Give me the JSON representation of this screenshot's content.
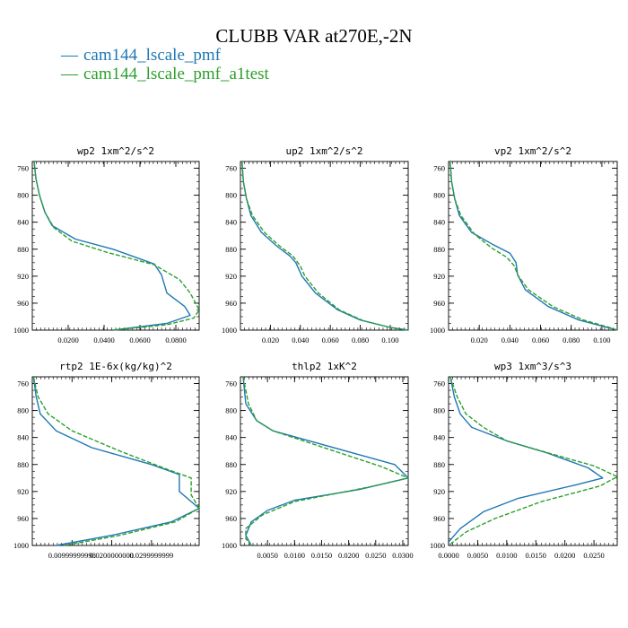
{
  "title": "CLUBB VAR at270E,-2N",
  "colors": {
    "series1": "#1f77b4",
    "series2": "#2ca02c"
  },
  "legend": [
    {
      "label": "cam144_lscale_pmf",
      "color": "#1f77b4",
      "style": "solid"
    },
    {
      "label": "cam144_lscale_pmf_a1test",
      "color": "#2ca02c",
      "style": "dashed"
    }
  ],
  "chart_data": [
    {
      "type": "line",
      "title": "wp2  1xm^2/s^2",
      "xlim": [
        0,
        0.093
      ],
      "ylim": [
        1000,
        750
      ],
      "xticks": [
        0.02,
        0.04,
        0.06,
        0.08
      ],
      "xtick_labels": [
        "0.0200",
        "0.0400",
        "0.0600",
        "0.0800"
      ],
      "yticks": [
        760,
        800,
        840,
        880,
        920,
        960,
        1000
      ],
      "series": [
        {
          "name": "cam144_lscale_pmf",
          "points": [
            [
              0.001,
              750
            ],
            [
              0.002,
              775
            ],
            [
              0.004,
              800
            ],
            [
              0.007,
              825
            ],
            [
              0.011,
              845
            ],
            [
              0.024,
              865
            ],
            [
              0.045,
              880
            ],
            [
              0.068,
              902
            ],
            [
              0.072,
              918
            ],
            [
              0.075,
              945
            ],
            [
              0.085,
              965
            ],
            [
              0.088,
              978
            ],
            [
              0.075,
              990
            ],
            [
              0.045,
              1000
            ]
          ]
        },
        {
          "name": "cam144_lscale_pmf_a1test",
          "points": [
            [
              0.001,
              750
            ],
            [
              0.002,
              775
            ],
            [
              0.004,
              800
            ],
            [
              0.007,
              825
            ],
            [
              0.012,
              848
            ],
            [
              0.022,
              868
            ],
            [
              0.042,
              885
            ],
            [
              0.068,
              903
            ],
            [
              0.082,
              925
            ],
            [
              0.088,
              945
            ],
            [
              0.093,
              970
            ],
            [
              0.09,
              982
            ],
            [
              0.075,
              992
            ],
            [
              0.045,
              1000
            ]
          ]
        }
      ]
    },
    {
      "type": "line",
      "title": "up2  1xm^2/s^2",
      "xlim": [
        0,
        0.112
      ],
      "ylim": [
        1000,
        750
      ],
      "xticks": [
        0.02,
        0.04,
        0.06,
        0.08,
        0.1
      ],
      "xtick_labels": [
        "0.020",
        "0.040",
        "0.060",
        "0.080",
        "0.100"
      ],
      "yticks": [
        760,
        800,
        840,
        880,
        920,
        960,
        1000
      ],
      "series": [
        {
          "name": "cam144_lscale_pmf",
          "points": [
            [
              0.001,
              750
            ],
            [
              0.002,
              780
            ],
            [
              0.004,
              805
            ],
            [
              0.007,
              830
            ],
            [
              0.014,
              855
            ],
            [
              0.024,
              875
            ],
            [
              0.033,
              890
            ],
            [
              0.037,
              900
            ],
            [
              0.041,
              920
            ],
            [
              0.05,
              945
            ],
            [
              0.065,
              970
            ],
            [
              0.08,
              985
            ],
            [
              0.1,
              996
            ],
            [
              0.112,
              1000
            ]
          ]
        },
        {
          "name": "cam144_lscale_pmf_a1test",
          "points": [
            [
              0.001,
              750
            ],
            [
              0.002,
              780
            ],
            [
              0.004,
              805
            ],
            [
              0.008,
              830
            ],
            [
              0.016,
              855
            ],
            [
              0.026,
              875
            ],
            [
              0.035,
              890
            ],
            [
              0.04,
              905
            ],
            [
              0.043,
              920
            ],
            [
              0.052,
              945
            ],
            [
              0.066,
              970
            ],
            [
              0.082,
              986
            ],
            [
              0.1,
              996
            ],
            [
              0.112,
              1000
            ]
          ]
        }
      ]
    },
    {
      "type": "line",
      "title": "vp2  1xm^2/s^2",
      "xlim": [
        0,
        0.11
      ],
      "ylim": [
        1000,
        750
      ],
      "xticks": [
        0.02,
        0.04,
        0.06,
        0.08,
        0.1
      ],
      "xtick_labels": [
        "0.020",
        "0.040",
        "0.060",
        "0.080",
        "0.100"
      ],
      "yticks": [
        760,
        800,
        840,
        880,
        920,
        960,
        1000
      ],
      "series": [
        {
          "name": "cam144_lscale_pmf",
          "points": [
            [
              0.001,
              750
            ],
            [
              0.002,
              780
            ],
            [
              0.004,
              805
            ],
            [
              0.007,
              830
            ],
            [
              0.015,
              855
            ],
            [
              0.028,
              872
            ],
            [
              0.04,
              886
            ],
            [
              0.044,
              900
            ],
            [
              0.045,
              918
            ],
            [
              0.05,
              940
            ],
            [
              0.065,
              965
            ],
            [
              0.085,
              985
            ],
            [
              0.105,
              997
            ],
            [
              0.11,
              1000
            ]
          ]
        },
        {
          "name": "cam144_lscale_pmf_a1test",
          "points": [
            [
              0.001,
              750
            ],
            [
              0.002,
              780
            ],
            [
              0.004,
              805
            ],
            [
              0.008,
              830
            ],
            [
              0.017,
              858
            ],
            [
              0.028,
              878
            ],
            [
              0.038,
              892
            ],
            [
              0.043,
              905
            ],
            [
              0.045,
              918
            ],
            [
              0.052,
              940
            ],
            [
              0.068,
              965
            ],
            [
              0.088,
              985
            ],
            [
              0.105,
              996
            ],
            [
              0.11,
              1000
            ]
          ]
        }
      ]
    },
    {
      "type": "line",
      "title": "rtp2  1E-6x(kg/kg)^2",
      "xlim": [
        0,
        0.042
      ],
      "ylim": [
        1000,
        750
      ],
      "xticks": [
        0.01,
        0.02,
        0.03
      ],
      "xtick_labels": [
        "0.00999999998",
        "0.0200000000",
        "0.0299999999"
      ],
      "yticks": [
        760,
        800,
        840,
        880,
        920,
        960,
        1000
      ],
      "series": [
        {
          "name": "cam144_lscale_pmf",
          "points": [
            [
              0.0003,
              750
            ],
            [
              0.001,
              780
            ],
            [
              0.002,
              805
            ],
            [
              0.006,
              830
            ],
            [
              0.015,
              855
            ],
            [
              0.03,
              880
            ],
            [
              0.037,
              895
            ],
            [
              0.037,
              920
            ],
            [
              0.04,
              935
            ],
            [
              0.042,
              945
            ],
            [
              0.035,
              965
            ],
            [
              0.02,
              985
            ],
            [
              0.006,
              1000
            ]
          ]
        },
        {
          "name": "cam144_lscale_pmf_a1test",
          "points": [
            [
              0.0003,
              750
            ],
            [
              0.0015,
              780
            ],
            [
              0.004,
              805
            ],
            [
              0.01,
              830
            ],
            [
              0.022,
              860
            ],
            [
              0.033,
              885
            ],
            [
              0.04,
              900
            ],
            [
              0.04,
              925
            ],
            [
              0.042,
              945
            ],
            [
              0.036,
              965
            ],
            [
              0.022,
              985
            ],
            [
              0.008,
              1000
            ]
          ]
        }
      ]
    },
    {
      "type": "line",
      "title": "thlp2  1xK^2",
      "xlim": [
        0,
        0.031
      ],
      "ylim": [
        1000,
        750
      ],
      "xticks": [
        0.005,
        0.01,
        0.015,
        0.02,
        0.025,
        0.03
      ],
      "xtick_labels": [
        "0.0050",
        "0.0100",
        "0.0150",
        "0.0200",
        "0.0250",
        "0.0300"
      ],
      "yticks": [
        760,
        800,
        840,
        880,
        920,
        960,
        1000
      ],
      "series": [
        {
          "name": "cam144_lscale_pmf",
          "points": [
            [
              0.0005,
              750
            ],
            [
              0.001,
              790
            ],
            [
              0.003,
              815
            ],
            [
              0.006,
              830
            ],
            [
              0.0285,
              880
            ],
            [
              0.031,
              900
            ],
            [
              0.022,
              917
            ],
            [
              0.01,
              933
            ],
            [
              0.005,
              948
            ],
            [
              0.002,
              965
            ],
            [
              0.001,
              985
            ],
            [
              0.002,
              1000
            ]
          ]
        },
        {
          "name": "cam144_lscale_pmf_a1test",
          "points": [
            [
              0.0005,
              750
            ],
            [
              0.0015,
              790
            ],
            [
              0.003,
              815
            ],
            [
              0.006,
              830
            ],
            [
              0.026,
              883
            ],
            [
              0.031,
              900
            ],
            [
              0.024,
              913
            ],
            [
              0.01,
              935
            ],
            [
              0.004,
              955
            ],
            [
              0.001,
              975
            ],
            [
              0.001,
              990
            ],
            [
              0.002,
              1000
            ]
          ]
        }
      ]
    },
    {
      "type": "line",
      "title": "wp3  1xm^3/s^3",
      "xlim": [
        0,
        0.029
      ],
      "ylim": [
        1000,
        750
      ],
      "xticks": [
        0,
        0.005,
        0.01,
        0.015,
        0.02,
        0.025
      ],
      "xtick_labels": [
        "0.0000",
        "0.0050",
        "0.0100",
        "0.0150",
        "0.0200",
        "0.0250"
      ],
      "yticks": [
        760,
        800,
        840,
        880,
        920,
        960,
        1000
      ],
      "series": [
        {
          "name": "cam144_lscale_pmf",
          "points": [
            [
              0.0003,
              750
            ],
            [
              0.001,
              780
            ],
            [
              0.002,
              805
            ],
            [
              0.004,
              825
            ],
            [
              0.01,
              845
            ],
            [
              0.017,
              863
            ],
            [
              0.024,
              885
            ],
            [
              0.0265,
              900
            ],
            [
              0.022,
              910
            ],
            [
              0.012,
              930
            ],
            [
              0.006,
              950
            ],
            [
              0.002,
              975
            ],
            [
              0,
              995
            ]
          ]
        },
        {
          "name": "cam144_lscale_pmf_a1test",
          "points": [
            [
              0.0003,
              750
            ],
            [
              0.0015,
              780
            ],
            [
              0.003,
              805
            ],
            [
              0.006,
              825
            ],
            [
              0.01,
              845
            ],
            [
              0.018,
              865
            ],
            [
              0.025,
              882
            ],
            [
              0.029,
              898
            ],
            [
              0.026,
              912
            ],
            [
              0.016,
              935
            ],
            [
              0.008,
              960
            ],
            [
              0.003,
              980
            ],
            [
              0,
              1000
            ]
          ]
        }
      ]
    }
  ]
}
